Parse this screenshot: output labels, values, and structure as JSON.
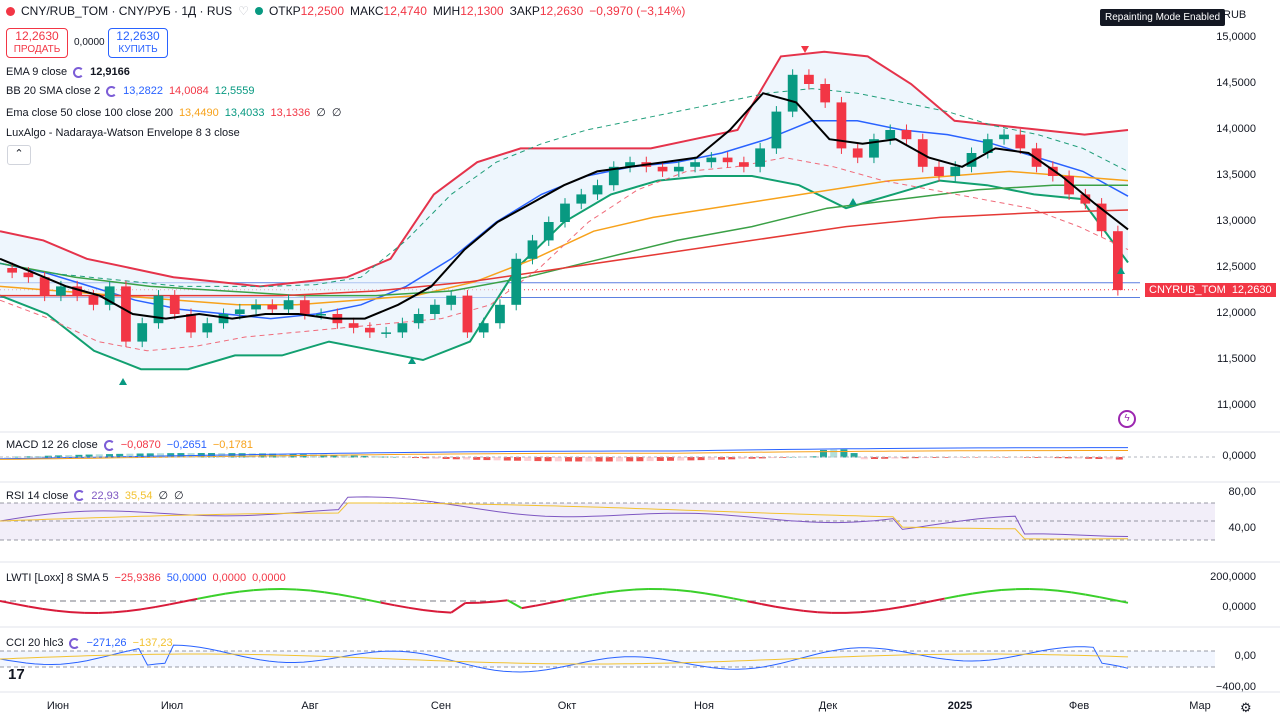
{
  "header": {
    "symbol": "CNY/RUB_TOM · CNY/РУБ · 1Д · RUS",
    "open_label": "ОТКР",
    "open": "12,2500",
    "high_label": "МАКС",
    "high": "12,4740",
    "low_label": "МИН",
    "low": "12,1300",
    "close_label": "ЗАКР",
    "close": "12,2630",
    "change": "−0,3970 (−3,14%)",
    "sell_price": "12,2630",
    "sell_label": "ПРОДАТЬ",
    "spread": "0,0000",
    "buy_price": "12,2630",
    "buy_label": "КУПИТЬ",
    "repaint_badge": "Repainting Mode Enabled",
    "currency": "RUB"
  },
  "legends": {
    "ema": {
      "name": "EMA 9 close",
      "v1": "12,9166"
    },
    "bb": {
      "name": "BB 20 SMA close 2",
      "v1": "13,2822",
      "v2": "14,0084",
      "v3": "12,5559"
    },
    "ema3": {
      "name": "Ema close 50 close 100 close 200",
      "v1": "13,4490",
      "v2": "13,4033",
      "v3": "13,1336",
      "v4": "∅",
      "v5": "∅"
    },
    "lux": {
      "name": "LuxAlgo - Nadaraya-Watson Envelope 8 3 close"
    },
    "macd": {
      "name": "MACD 12 26 close",
      "v1": "−0,0870",
      "v2": "−0,2651",
      "v3": "−0,1781"
    },
    "rsi": {
      "name": "RSI 14 close",
      "v1": "22,93",
      "v2": "35,54",
      "v3": "∅",
      "v4": "∅"
    },
    "lwti": {
      "name": "LWTI [Loxx] 8 SMA 5",
      "v1": "−25,9386",
      "v2": "50,0000",
      "v3": "0,0000",
      "v4": "0,0000"
    },
    "cci": {
      "name": "CCI 20 hlc3",
      "v1": "−271,26",
      "v2": "−137,23"
    }
  },
  "price_tag": {
    "symbol": "CNYRUB_TOM",
    "value": "12,2630"
  },
  "icons": {
    "cycle": "cycle-icon",
    "collapse": "chevron-up-icon",
    "settings": "gear-icon",
    "logo": "tv-logo-icon",
    "bolt": "lightning-icon"
  },
  "colors": {
    "up": "#089981",
    "down": "#f23645",
    "ema9": "#000000",
    "bb_mid": "#2962ff",
    "bb_upper": "#e5334b",
    "bb_lower": "#12a070",
    "ema50": "#f7a21b",
    "ema100": "#3aa046",
    "ema200": "#e53935",
    "macd": "#2962ff",
    "signal": "#f7a21b",
    "rsi": "#7e57c2",
    "rsi_ma": "#f2c230",
    "lwti_up": "#3bd02b",
    "lwti_down": "#d81b3a",
    "cci": "#2962ff",
    "cci_ma": "#f2c230"
  },
  "chart_data": {
    "type": "candlestick",
    "x_ticks": [
      "Июн",
      "Июл",
      "Авг",
      "Сен",
      "Окт",
      "Ноя",
      "Дек",
      "2025",
      "Фев",
      "Мар"
    ],
    "y_ticks": {
      "price": [
        "15,0000",
        "14,5000",
        "14,0000",
        "13,5000",
        "13,0000",
        "12,5000",
        "12,0000",
        "11,5000",
        "11,0000"
      ],
      "macd": [
        "0,0000"
      ],
      "rsi": [
        "80,00",
        "40,00"
      ],
      "lwti": [
        "200,0000",
        "0,0000"
      ],
      "cci": [
        "0,00",
        "−400,00"
      ]
    },
    "price_range": [
      10.7,
      15.2
    ],
    "price_series": [
      12.45,
      12.4,
      12.2,
      12.3,
      12.2,
      12.1,
      12.3,
      11.7,
      11.9,
      12.2,
      12.0,
      11.8,
      11.9,
      12.0,
      12.05,
      12.1,
      12.05,
      12.15,
      12.0,
      12.0,
      11.9,
      11.85,
      11.8,
      11.8,
      11.9,
      12.0,
      12.1,
      12.2,
      11.8,
      11.9,
      12.1,
      12.6,
      12.8,
      13.0,
      13.2,
      13.3,
      13.4,
      13.6,
      13.65,
      13.6,
      13.55,
      13.6,
      13.65,
      13.7,
      13.65,
      13.6,
      13.8,
      14.2,
      14.6,
      14.5,
      14.3,
      13.8,
      13.7,
      13.9,
      14.0,
      13.9,
      13.6,
      13.5,
      13.6,
      13.75,
      13.9,
      13.95,
      13.8,
      13.6,
      13.5,
      13.3,
      13.2,
      12.9,
      12.26
    ],
    "ema9": [
      12.6,
      12.45,
      12.3,
      12.2,
      12.0,
      11.95,
      12.0,
      11.95,
      12.0,
      12.0,
      11.95,
      11.95,
      12.1,
      12.3,
      12.7,
      13.0,
      13.2,
      13.4,
      13.55,
      13.6,
      13.65,
      13.7,
      14.0,
      14.4,
      14.3,
      13.9,
      13.85,
      13.9,
      13.7,
      13.6,
      13.8,
      13.75,
      13.5,
      13.2,
      12.92
    ],
    "bb_upper": [
      12.9,
      12.8,
      12.6,
      12.5,
      12.4,
      12.35,
      12.3,
      12.35,
      12.4,
      12.6,
      13.3,
      13.65,
      13.8,
      13.8,
      13.8,
      13.8,
      13.9,
      14.0,
      14.8,
      14.85,
      14.8,
      14.5,
      14.1,
      14.05,
      14.0,
      13.95,
      14.0
    ],
    "bb_mid": [
      12.55,
      12.45,
      12.3,
      12.15,
      12.05,
      12.0,
      11.95,
      12.0,
      12.1,
      12.3,
      12.6,
      13.0,
      13.3,
      13.5,
      13.6,
      13.65,
      13.75,
      13.9,
      14.1,
      14.1,
      14.0,
      13.95,
      13.85,
      13.7,
      13.55,
      13.28
    ],
    "bb_lower": [
      12.2,
      12.0,
      11.6,
      11.4,
      11.4,
      11.55,
      11.55,
      11.7,
      11.6,
      11.5,
      11.7,
      12.5,
      13.0,
      13.3,
      13.45,
      13.5,
      13.5,
      13.4,
      13.15,
      13.3,
      13.45,
      13.4,
      13.3,
      13.25,
      12.56
    ],
    "ema50": [
      12.3,
      12.25,
      12.2,
      12.15,
      12.1,
      12.1,
      12.15,
      12.2,
      12.35,
      12.6,
      12.9,
      13.05,
      13.15,
      13.25,
      13.35,
      13.45,
      13.5,
      13.55,
      13.5,
      13.45
    ],
    "ema100": [
      12.55,
      12.4,
      12.3,
      12.25,
      12.2,
      12.2,
      12.25,
      12.4,
      12.6,
      12.8,
      12.95,
      13.15,
      13.25,
      13.35,
      13.4,
      13.4
    ],
    "ema200": [
      12.2,
      12.2,
      12.2,
      12.2,
      12.25,
      12.35,
      12.5,
      12.65,
      12.8,
      12.95,
      13.05,
      13.1,
      13.13
    ]
  }
}
